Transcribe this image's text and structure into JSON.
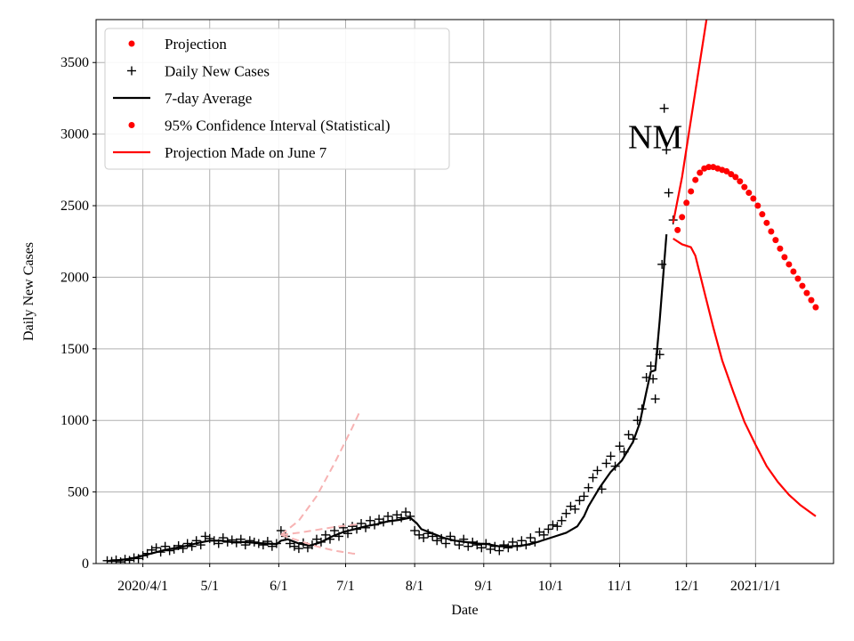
{
  "chart_data": {
    "type": "line",
    "title": "",
    "xlabel": "Date",
    "ylabel": "Daily New Cases",
    "ylim": [
      0,
      3800
    ],
    "xlim_day": [
      -21,
      310
    ],
    "grid": true,
    "annotation": "NM",
    "y_ticks": [
      0,
      500,
      1000,
      1500,
      2000,
      2500,
      3000,
      3500
    ],
    "x_ticks": [
      {
        "day": 0,
        "label": "2020/4/1"
      },
      {
        "day": 30,
        "label": "5/1"
      },
      {
        "day": 61,
        "label": "6/1"
      },
      {
        "day": 91,
        "label": "7/1"
      },
      {
        "day": 122,
        "label": "8/1"
      },
      {
        "day": 153,
        "label": "9/1"
      },
      {
        "day": 183,
        "label": "10/1"
      },
      {
        "day": 214,
        "label": "11/1"
      },
      {
        "day": 244,
        "label": "12/1"
      },
      {
        "day": 275,
        "label": "2021/1/1"
      }
    ],
    "legend": {
      "placement": "top-left",
      "entries": [
        {
          "label": "Projection",
          "kind": "dot",
          "color": "#ff0000"
        },
        {
          "label": "Daily New Cases",
          "kind": "plus",
          "color": "#000000"
        },
        {
          "label": "7-day Average",
          "kind": "line",
          "color": "#000000"
        },
        {
          "label": "95% Confidence Interval (Statistical)",
          "kind": "dot",
          "color": "#ff0000"
        },
        {
          "label": "Projection Made on June 7",
          "kind": "line",
          "color": "#ff0000"
        }
      ]
    },
    "series": [
      {
        "name": "7-day Average",
        "kind": "line",
        "color": "#000000",
        "points": [
          [
            -15,
            20
          ],
          [
            -10,
            25
          ],
          [
            -5,
            35
          ],
          [
            0,
            55
          ],
          [
            5,
            75
          ],
          [
            10,
            95
          ],
          [
            15,
            110
          ],
          [
            20,
            125
          ],
          [
            25,
            145
          ],
          [
            30,
            160
          ],
          [
            35,
            160
          ],
          [
            40,
            150
          ],
          [
            45,
            150
          ],
          [
            50,
            145
          ],
          [
            55,
            140
          ],
          [
            60,
            135
          ],
          [
            62,
            160
          ],
          [
            65,
            170
          ],
          [
            70,
            140
          ],
          [
            75,
            125
          ],
          [
            80,
            150
          ],
          [
            85,
            190
          ],
          [
            90,
            220
          ],
          [
            95,
            240
          ],
          [
            100,
            260
          ],
          [
            105,
            275
          ],
          [
            110,
            295
          ],
          [
            115,
            305
          ],
          [
            120,
            320
          ],
          [
            123,
            280
          ],
          [
            125,
            240
          ],
          [
            130,
            210
          ],
          [
            135,
            180
          ],
          [
            140,
            160
          ],
          [
            145,
            150
          ],
          [
            150,
            140
          ],
          [
            155,
            135
          ],
          [
            160,
            120
          ],
          [
            165,
            120
          ],
          [
            170,
            125
          ],
          [
            175,
            140
          ],
          [
            180,
            165
          ],
          [
            185,
            190
          ],
          [
            190,
            215
          ],
          [
            195,
            260
          ],
          [
            198,
            330
          ],
          [
            200,
            400
          ],
          [
            205,
            530
          ],
          [
            210,
            640
          ],
          [
            215,
            720
          ],
          [
            220,
            850
          ],
          [
            223,
            980
          ],
          [
            226,
            1200
          ],
          [
            228,
            1340
          ],
          [
            230,
            1350
          ],
          [
            232,
            1700
          ],
          [
            235,
            2300
          ]
        ]
      },
      {
        "name": "Daily New Cases",
        "kind": "plus",
        "color": "#000000",
        "points": [
          [
            -16,
            20
          ],
          [
            -14,
            15
          ],
          [
            -12,
            25
          ],
          [
            -10,
            12
          ],
          [
            -8,
            30
          ],
          [
            -6,
            22
          ],
          [
            -4,
            40
          ],
          [
            -2,
            35
          ],
          [
            0,
            55
          ],
          [
            2,
            70
          ],
          [
            4,
            95
          ],
          [
            6,
            110
          ],
          [
            8,
            80
          ],
          [
            10,
            120
          ],
          [
            12,
            90
          ],
          [
            14,
            100
          ],
          [
            16,
            125
          ],
          [
            18,
            105
          ],
          [
            20,
            140
          ],
          [
            22,
            120
          ],
          [
            24,
            160
          ],
          [
            26,
            130
          ],
          [
            28,
            190
          ],
          [
            30,
            175
          ],
          [
            32,
            160
          ],
          [
            34,
            140
          ],
          [
            36,
            180
          ],
          [
            38,
            150
          ],
          [
            40,
            165
          ],
          [
            42,
            145
          ],
          [
            44,
            170
          ],
          [
            46,
            130
          ],
          [
            48,
            160
          ],
          [
            50,
            150
          ],
          [
            52,
            140
          ],
          [
            54,
            130
          ],
          [
            56,
            155
          ],
          [
            58,
            120
          ],
          [
            60,
            140
          ],
          [
            62,
            230
          ],
          [
            64,
            190
          ],
          [
            66,
            140
          ],
          [
            68,
            120
          ],
          [
            70,
            105
          ],
          [
            72,
            145
          ],
          [
            74,
            110
          ],
          [
            76,
            130
          ],
          [
            78,
            170
          ],
          [
            80,
            150
          ],
          [
            82,
            200
          ],
          [
            84,
            170
          ],
          [
            86,
            230
          ],
          [
            88,
            190
          ],
          [
            90,
            250
          ],
          [
            92,
            210
          ],
          [
            94,
            260
          ],
          [
            96,
            240
          ],
          [
            98,
            280
          ],
          [
            100,
            250
          ],
          [
            102,
            300
          ],
          [
            104,
            270
          ],
          [
            106,
            310
          ],
          [
            108,
            290
          ],
          [
            110,
            330
          ],
          [
            112,
            300
          ],
          [
            114,
            340
          ],
          [
            116,
            320
          ],
          [
            118,
            360
          ],
          [
            120,
            330
          ],
          [
            122,
            230
          ],
          [
            124,
            200
          ],
          [
            126,
            180
          ],
          [
            128,
            210
          ],
          [
            130,
            190
          ],
          [
            132,
            160
          ],
          [
            134,
            175
          ],
          [
            136,
            140
          ],
          [
            138,
            190
          ],
          [
            140,
            160
          ],
          [
            142,
            130
          ],
          [
            144,
            170
          ],
          [
            146,
            120
          ],
          [
            148,
            150
          ],
          [
            150,
            130
          ],
          [
            152,
            110
          ],
          [
            154,
            140
          ],
          [
            156,
            100
          ],
          [
            158,
            120
          ],
          [
            160,
            90
          ],
          [
            162,
            130
          ],
          [
            164,
            110
          ],
          [
            166,
            150
          ],
          [
            168,
            120
          ],
          [
            170,
            160
          ],
          [
            172,
            130
          ],
          [
            174,
            180
          ],
          [
            176,
            150
          ],
          [
            178,
            220
          ],
          [
            180,
            200
          ],
          [
            182,
            240
          ],
          [
            184,
            270
          ],
          [
            186,
            260
          ],
          [
            188,
            300
          ],
          [
            190,
            350
          ],
          [
            192,
            400
          ],
          [
            194,
            380
          ],
          [
            196,
            440
          ],
          [
            198,
            470
          ],
          [
            200,
            530
          ],
          [
            202,
            600
          ],
          [
            204,
            650
          ],
          [
            206,
            520
          ],
          [
            208,
            700
          ],
          [
            210,
            750
          ],
          [
            212,
            680
          ],
          [
            214,
            820
          ],
          [
            216,
            780
          ],
          [
            218,
            900
          ],
          [
            220,
            870
          ],
          [
            222,
            1000
          ],
          [
            224,
            1080
          ],
          [
            226,
            1300
          ],
          [
            228,
            1380
          ],
          [
            230,
            1150
          ],
          [
            232,
            1460
          ],
          [
            234,
            3180
          ],
          [
            236,
            2590
          ],
          [
            238,
            2400
          ],
          [
            231,
            1500
          ],
          [
            229,
            1290
          ],
          [
            233,
            2090
          ],
          [
            235,
            2890
          ]
        ]
      },
      {
        "name": "Projection",
        "kind": "dots",
        "color": "#ff0000",
        "points": [
          [
            240,
            2330
          ],
          [
            242,
            2420
          ],
          [
            244,
            2520
          ],
          [
            246,
            2600
          ],
          [
            248,
            2680
          ],
          [
            250,
            2730
          ],
          [
            252,
            2760
          ],
          [
            254,
            2770
          ],
          [
            256,
            2770
          ],
          [
            258,
            2760
          ],
          [
            260,
            2750
          ],
          [
            262,
            2740
          ],
          [
            264,
            2720
          ],
          [
            266,
            2700
          ],
          [
            268,
            2670
          ],
          [
            270,
            2630
          ],
          [
            272,
            2590
          ],
          [
            274,
            2550
          ],
          [
            276,
            2500
          ],
          [
            278,
            2440
          ],
          [
            280,
            2380
          ],
          [
            282,
            2320
          ],
          [
            284,
            2260
          ],
          [
            286,
            2200
          ],
          [
            288,
            2140
          ],
          [
            290,
            2090
          ],
          [
            292,
            2040
          ],
          [
            294,
            1990
          ],
          [
            296,
            1940
          ],
          [
            298,
            1890
          ],
          [
            300,
            1840
          ],
          [
            302,
            1790
          ]
        ]
      },
      {
        "name": "Projection Made on June 7",
        "kind": "line",
        "color": "#ff0000",
        "points": [
          [
            238,
            2270
          ],
          [
            242,
            2230
          ],
          [
            246,
            2210
          ],
          [
            248,
            2150
          ],
          [
            252,
            1900
          ],
          [
            256,
            1650
          ],
          [
            260,
            1420
          ],
          [
            265,
            1200
          ],
          [
            270,
            990
          ],
          [
            275,
            830
          ],
          [
            280,
            680
          ],
          [
            285,
            570
          ],
          [
            290,
            480
          ],
          [
            295,
            410
          ],
          [
            302,
            330
          ]
        ]
      },
      {
        "kind": "line",
        "color": "#ff0000",
        "points": [
          [
            238,
            2380
          ],
          [
            242,
            2700
          ],
          [
            246,
            3100
          ],
          [
            250,
            3500
          ],
          [
            253,
            3800
          ]
        ]
      },
      {
        "kind": "dashed",
        "color": "#f7b3b3",
        "points": [
          [
            62,
            200
          ],
          [
            70,
            300
          ],
          [
            78,
            470
          ],
          [
            86,
            700
          ],
          [
            94,
            950
          ],
          [
            97,
            1050
          ]
        ]
      },
      {
        "kind": "dashed",
        "color": "#f7b3b3",
        "points": [
          [
            62,
            200
          ],
          [
            70,
            215
          ],
          [
            78,
            235
          ],
          [
            86,
            255
          ],
          [
            94,
            270
          ],
          [
            97,
            275
          ]
        ]
      },
      {
        "kind": "dashed",
        "color": "#f7b3b3",
        "points": [
          [
            62,
            200
          ],
          [
            70,
            160
          ],
          [
            78,
            120
          ],
          [
            86,
            90
          ],
          [
            94,
            70
          ],
          [
            97,
            65
          ]
        ]
      }
    ]
  }
}
